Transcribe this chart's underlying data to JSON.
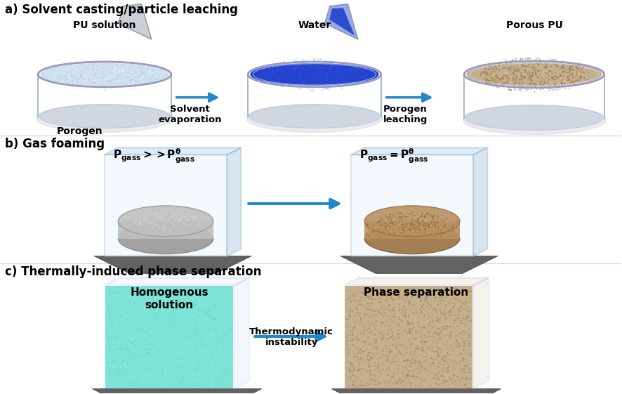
{
  "title_a": "a) Solvent casting/particle leaching",
  "title_b": "b) Gas foaming",
  "title_c": "c) Thermally-induced phase separation",
  "label_porogen": "Porogen",
  "label_pu_solution": "PU solution",
  "label_solvent_evap": "Solvent\nevaporation",
  "label_water": "Water",
  "label_porogen_leaching": "Porogen\nleaching",
  "label_porous_pu": "Porous PU",
  "label_pgass_high": "$\\mathbf{P_{gass} >> P^{\\theta}_{gass}}$",
  "label_pgass_eq": "$\\mathbf{P_{gass} = P^{\\theta}_{gass}}$",
  "label_homogenous": "Homogenous\nsolution",
  "label_thermo": "Thermodynamic\ninstability",
  "label_phase_sep": "Phase separation",
  "bg_color": "#ffffff",
  "arrow_color": "#2288cc",
  "text_color": "#000000",
  "dish1_fill": "#c8ddf0",
  "dish2_fill": "#1133cc",
  "dish3_fill": "#c0a882",
  "foam_gray": "#c0c0c0",
  "foam_tan": "#b89060",
  "cyan_liquid": "#60ddd0",
  "box_glass": "#ddeeff",
  "base_dark": "#555555",
  "section_line": "#aaaaaa"
}
